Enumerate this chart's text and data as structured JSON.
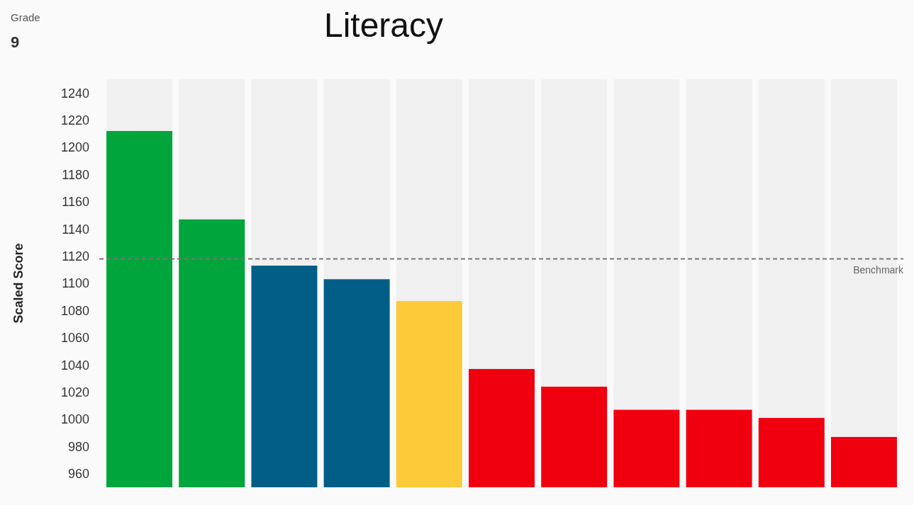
{
  "chart_data": {
    "type": "bar",
    "title": "Literacy",
    "ylabel": "Scaled Score",
    "annotations": [
      "Grade",
      "9"
    ],
    "categories": [
      null,
      null,
      null,
      null,
      null,
      null,
      null,
      null,
      null,
      null,
      null
    ],
    "values": [
      1212,
      1147,
      1113,
      1103,
      1087,
      1037,
      1024,
      1007,
      1007,
      1001,
      987
    ],
    "colors": [
      "#00a53c",
      "#00a53c",
      "#005e87",
      "#005e87",
      "#fdca3a",
      "#f0000f",
      "#f0000f",
      "#f0000f",
      "#f0000f",
      "#f0000f",
      "#f0000f"
    ],
    "ylim": [
      950,
      1250
    ],
    "yticks": [
      960,
      980,
      1000,
      1020,
      1040,
      1060,
      1080,
      1100,
      1120,
      1140,
      1160,
      1180,
      1200,
      1220,
      1240
    ],
    "ref_lines": [
      {
        "axis": "y",
        "value": 1118,
        "label": "Benchmark",
        "color": "#777777",
        "line_style": "dashed"
      }
    ],
    "grid": false
  }
}
